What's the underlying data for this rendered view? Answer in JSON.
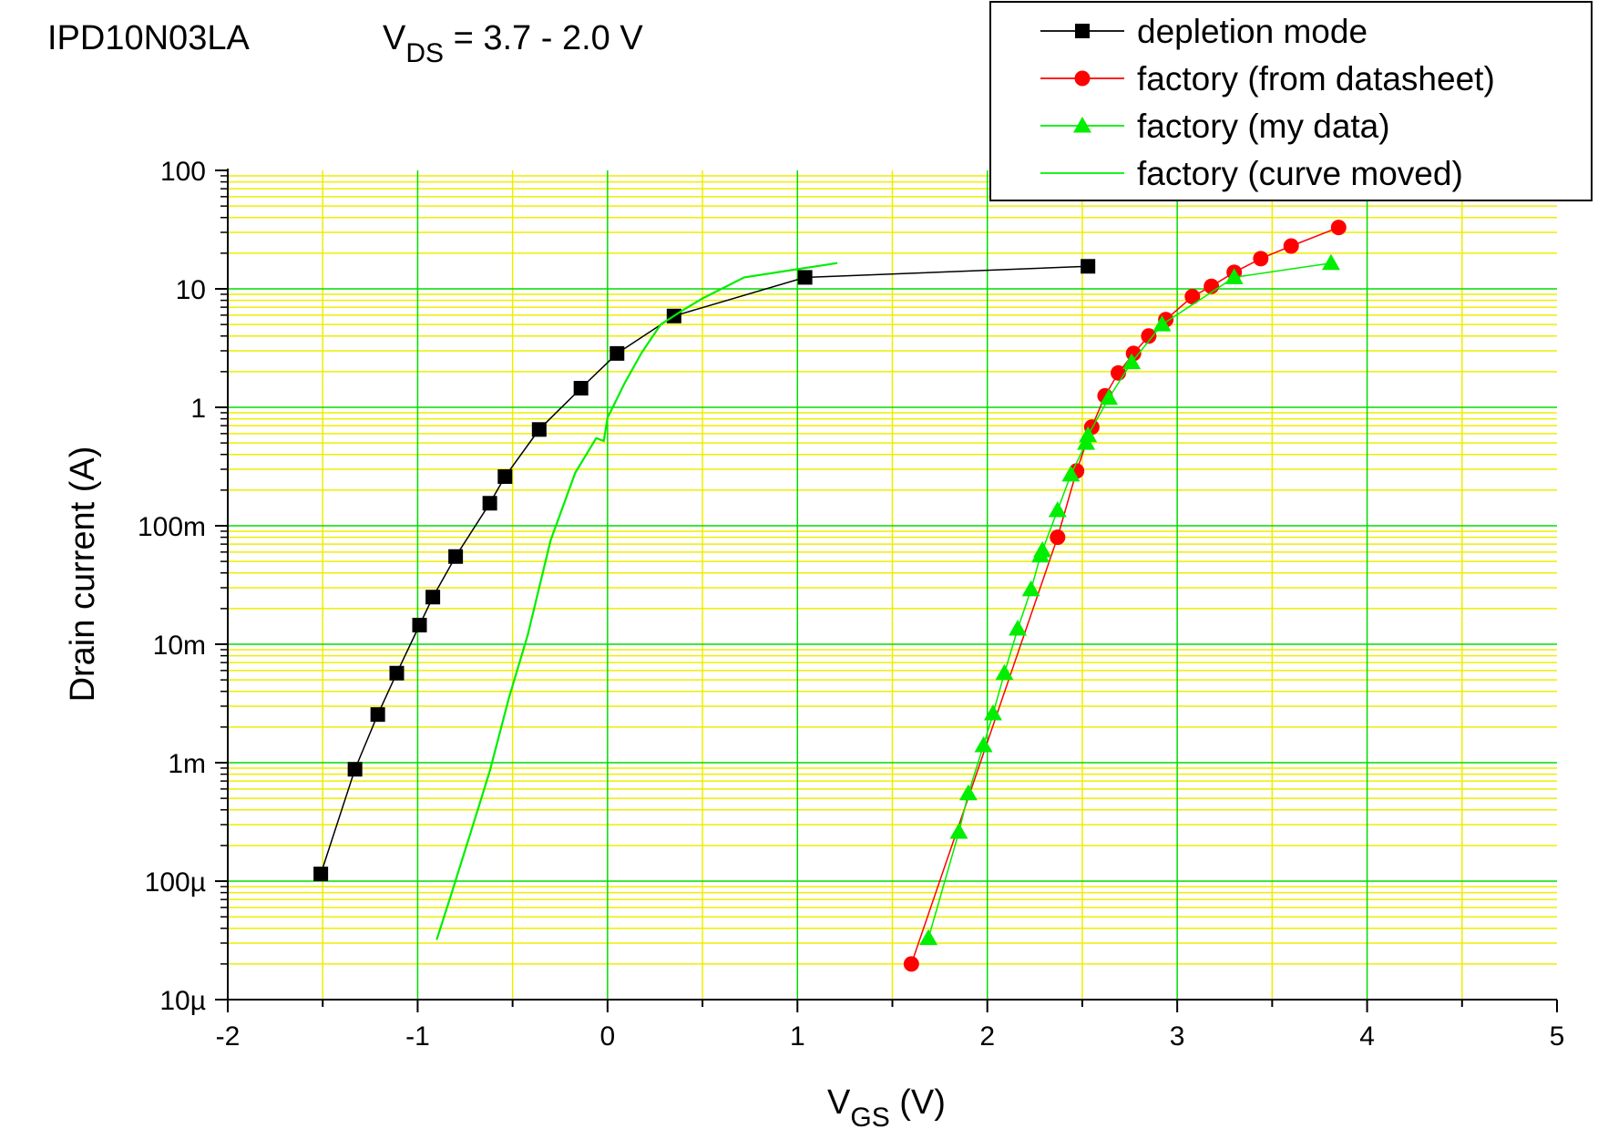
{
  "chart_data": {
    "type": "scatter",
    "title_left": "IPD10N03LA",
    "title_right": {
      "prefix": "V",
      "subscript": "DS",
      "suffix": " = 3.7 - 2.0 V"
    },
    "xlabel": {
      "main": "V",
      "subscript": "GS",
      "suffix": " (V)"
    },
    "ylabel": "Drain current (A)",
    "xlim": [
      -2,
      5
    ],
    "ylim": [
      1e-05,
      100
    ],
    "yscale": "log",
    "x_ticks": [
      "-2",
      "-1",
      "0",
      "1",
      "2",
      "3",
      "4",
      "5"
    ],
    "y_ticks": [
      "10µ",
      "100µ",
      "1m",
      "10m",
      "100m",
      "1",
      "10",
      "100"
    ],
    "grid": true,
    "colors": {
      "major_grid": "#00dd00",
      "minor_grid": "#eeee00",
      "depletion": "#000000",
      "datasheet": "#ff0000",
      "my_data": "#00ee00",
      "moved": "#00ee00"
    },
    "legend_position": "top-right",
    "legend": [
      "depletion mode",
      "factory (from datasheet)",
      "factory (my data)",
      "factory (curve moved)"
    ],
    "series": [
      {
        "name": "depletion mode",
        "marker": "square",
        "x": [
          -1.51,
          -1.33,
          -1.21,
          -1.11,
          -0.99,
          -0.92,
          -0.8,
          -0.62,
          -0.54,
          -0.36,
          -0.14,
          0.05,
          0.35,
          1.04,
          2.53
        ],
        "y": [
          0.000115,
          0.00088,
          0.00255,
          0.0057,
          0.0145,
          0.025,
          0.055,
          0.155,
          0.26,
          0.65,
          1.45,
          2.85,
          5.9,
          12.5,
          15.5
        ]
      },
      {
        "name": "factory (from datasheet)",
        "marker": "circle",
        "x": [
          1.6,
          2.37,
          2.47,
          2.55,
          2.62,
          2.69,
          2.77,
          2.85,
          2.94,
          3.08,
          3.18,
          3.3,
          3.44,
          3.6,
          3.85
        ],
        "y": [
          2e-05,
          0.08,
          0.29,
          0.68,
          1.25,
          1.95,
          2.85,
          4.0,
          5.5,
          8.6,
          10.5,
          13.8,
          18.0,
          23.0,
          33.0
        ]
      },
      {
        "name": "factory (my data)",
        "marker": "triangle",
        "x": [
          1.69,
          1.85,
          1.9,
          1.98,
          2.03,
          2.09,
          2.16,
          2.23,
          2.28,
          2.29,
          2.37,
          2.44,
          2.52,
          2.53,
          2.64,
          2.76,
          2.92,
          3.3,
          3.81
        ],
        "y": [
          3.3e-05,
          0.00026,
          0.00055,
          0.0014,
          0.0026,
          0.0057,
          0.0135,
          0.029,
          0.056,
          0.062,
          0.135,
          0.27,
          0.5,
          0.58,
          1.2,
          2.4,
          5.0,
          12.5,
          16.5
        ]
      },
      {
        "name": "factory (curve moved)",
        "marker": "none",
        "x": [
          -0.9,
          -0.82,
          -0.72,
          -0.62,
          -0.52,
          -0.42,
          -0.3,
          -0.17,
          -0.06,
          -0.02,
          0.0,
          0.04,
          0.09,
          0.18,
          0.28,
          0.39,
          0.5,
          0.72,
          1.21
        ],
        "y": [
          3.2e-05,
          8e-05,
          0.00026,
          0.00085,
          0.0035,
          0.012,
          0.075,
          0.28,
          0.55,
          0.52,
          0.82,
          1.1,
          1.6,
          2.9,
          5.0,
          6.5,
          8.3,
          12.5,
          16.5
        ]
      }
    ]
  }
}
